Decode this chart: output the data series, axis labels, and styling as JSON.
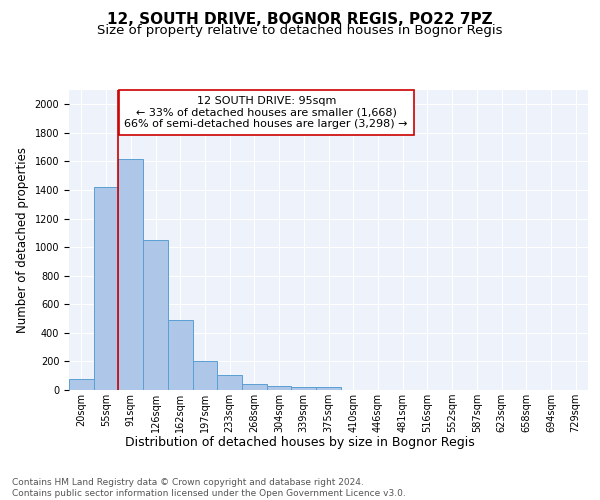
{
  "title": "12, SOUTH DRIVE, BOGNOR REGIS, PO22 7PZ",
  "subtitle": "Size of property relative to detached houses in Bognor Regis",
  "xlabel": "Distribution of detached houses by size in Bognor Regis",
  "ylabel": "Number of detached properties",
  "bin_labels": [
    "20sqm",
    "55sqm",
    "91sqm",
    "126sqm",
    "162sqm",
    "197sqm",
    "233sqm",
    "268sqm",
    "304sqm",
    "339sqm",
    "375sqm",
    "410sqm",
    "446sqm",
    "481sqm",
    "516sqm",
    "552sqm",
    "587sqm",
    "623sqm",
    "658sqm",
    "694sqm",
    "729sqm"
  ],
  "bar_heights": [
    80,
    1420,
    1620,
    1050,
    490,
    205,
    105,
    40,
    28,
    20,
    18,
    0,
    0,
    0,
    0,
    0,
    0,
    0,
    0,
    0,
    0
  ],
  "bar_color": "#aec6e8",
  "bar_edge_color": "#5a9fd4",
  "background_color": "#eef3fb",
  "grid_color": "#ffffff",
  "vline_x_index": 2,
  "vline_color": "#cc0000",
  "annotation_text": "12 SOUTH DRIVE: 95sqm\n← 33% of detached houses are smaller (1,668)\n66% of semi-detached houses are larger (3,298) →",
  "annotation_box_color": "#ffffff",
  "annotation_box_edge": "#cc0000",
  "ylim": [
    0,
    2100
  ],
  "yticks": [
    0,
    200,
    400,
    600,
    800,
    1000,
    1200,
    1400,
    1600,
    1800,
    2000
  ],
  "footnote": "Contains HM Land Registry data © Crown copyright and database right 2024.\nContains public sector information licensed under the Open Government Licence v3.0.",
  "title_fontsize": 11,
  "subtitle_fontsize": 9.5,
  "xlabel_fontsize": 9,
  "ylabel_fontsize": 8.5,
  "tick_fontsize": 7,
  "annotation_fontsize": 8,
  "footnote_fontsize": 6.5
}
